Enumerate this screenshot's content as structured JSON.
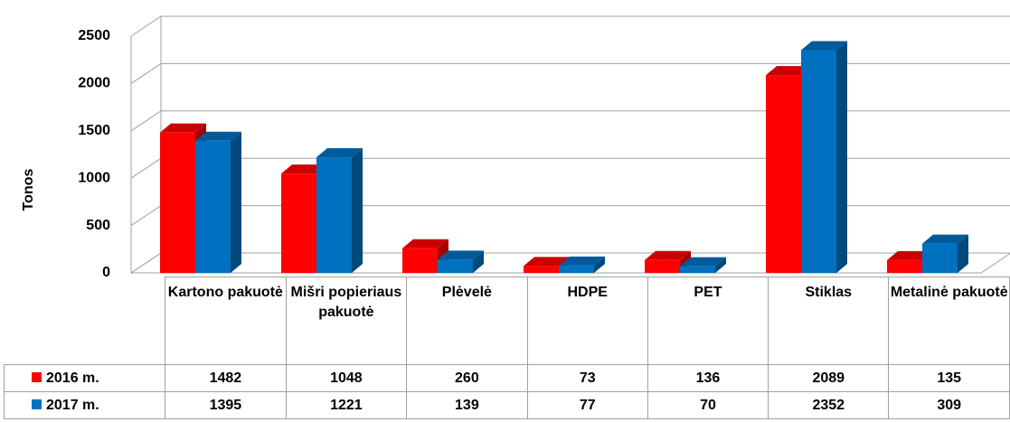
{
  "chart_data": {
    "type": "bar3d",
    "y_label": "Tonos",
    "categories": [
      "Kartono pakuotė",
      "Mišri popieriaus pakuotė",
      "Plėvelė",
      "HDPE",
      "PET",
      "Stiklas",
      "Metalinė pakuotė"
    ],
    "series": [
      {
        "name": "2016 m.",
        "color": "#ff0000",
        "values": [
          1482,
          1048,
          260,
          73,
          136,
          2089,
          135
        ]
      },
      {
        "name": "2017 m.",
        "color": "#0070c0",
        "values": [
          1395,
          1221,
          139,
          77,
          70,
          2352,
          309
        ]
      }
    ],
    "ylim": [
      0,
      2500
    ],
    "yticks": [
      0,
      500,
      1000,
      1500,
      2000,
      2500
    ],
    "grid": true
  }
}
